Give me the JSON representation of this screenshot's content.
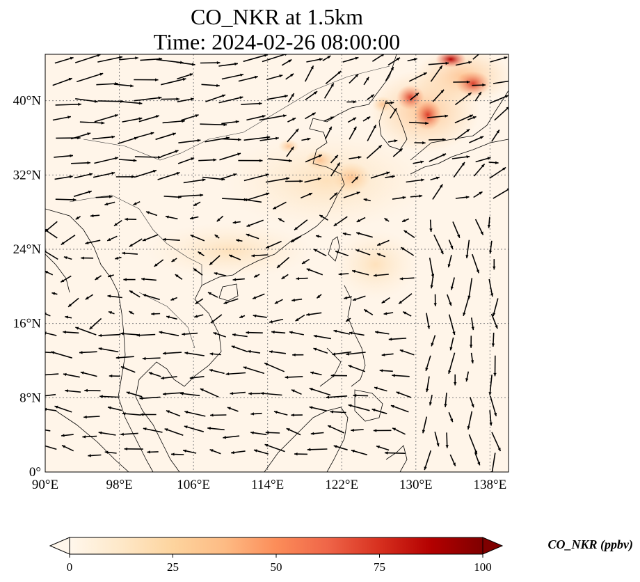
{
  "title": {
    "line1": "CO_NKR at 1.5km",
    "line2": "Time: 2024-02-26 08:00:00"
  },
  "map": {
    "projection": "PlateCarree",
    "lon_range": [
      90,
      140
    ],
    "lat_range": [
      0,
      45
    ],
    "gridlines": "dotted gray",
    "lon_ticks": [
      {
        "value": 90,
        "label": "90°E"
      },
      {
        "value": 98,
        "label": "98°E"
      },
      {
        "value": 106,
        "label": "106°E"
      },
      {
        "value": 114,
        "label": "114°E"
      },
      {
        "value": 122,
        "label": "122°E"
      },
      {
        "value": 130,
        "label": "130°E"
      },
      {
        "value": 138,
        "label": "138°E"
      }
    ],
    "lat_ticks": [
      {
        "value": 0,
        "label": "0°"
      },
      {
        "value": 8,
        "label": "8°N"
      },
      {
        "value": 16,
        "label": "16°N"
      },
      {
        "value": 24,
        "label": "24°N"
      },
      {
        "value": 32,
        "label": "32°N"
      },
      {
        "value": 40,
        "label": "40°N"
      }
    ],
    "background_color": "#fff5e9",
    "coast_color": "#000000",
    "wind_vectors": "black arrows"
  },
  "colorbar": {
    "label": "CO_NKR (ppbv)",
    "min": 0,
    "max": 100,
    "extend": "both",
    "colormap": "OrRd",
    "colors": [
      "#fff7ec",
      "#fee8c8",
      "#fdd49e",
      "#fdbb84",
      "#fc8d59",
      "#ef6548",
      "#d7301f",
      "#b30000",
      "#7f0000"
    ],
    "ticks": [
      {
        "value": 0,
        "label": "0"
      },
      {
        "value": 25,
        "label": "25"
      },
      {
        "value": 50,
        "label": "50"
      },
      {
        "value": 75,
        "label": "75"
      },
      {
        "value": 100,
        "label": "100"
      }
    ]
  }
}
